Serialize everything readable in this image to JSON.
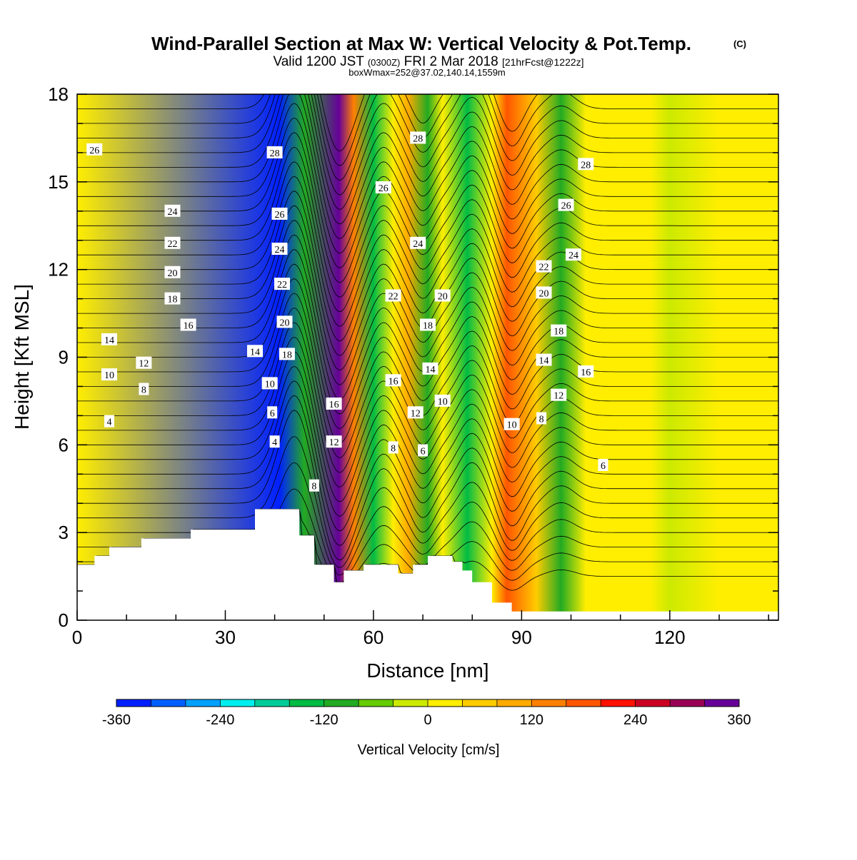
{
  "title": {
    "main": "Wind-Parallel Section at Max W: Vertical Velocity & Pot.Temp.",
    "copyright": "(C)",
    "valid_prefix": "Valid 1200 JST",
    "valid_zulu": "(0300Z)",
    "valid_date": "FRI 2 Mar 2018",
    "forecast": "[21hrFcst@1222z]",
    "boxinfo": "boxWmax=252@37.02,140.14,1559m"
  },
  "chart_data": {
    "type": "heatmap",
    "xlabel": "Distance [nm]",
    "ylabel": "Height [Kft MSL]",
    "xlim": [
      0,
      142
    ],
    "ylim": [
      0,
      18
    ],
    "x_ticks": [
      0,
      30,
      60,
      90,
      120
    ],
    "x_tick_labels": [
      "0",
      "30",
      "60",
      "90",
      "120"
    ],
    "y_ticks": [
      0,
      3,
      6,
      9,
      12,
      15,
      18
    ],
    "y_tick_labels": [
      "0",
      "3",
      "6",
      "9",
      "12",
      "15",
      "18"
    ],
    "colorbar": {
      "label": "Vertical Velocity [cm/s]",
      "min": -360,
      "max": 360,
      "step": 40,
      "tick_values": [
        -360,
        -240,
        -120,
        0,
        120,
        240,
        360
      ],
      "tick_labels": [
        "-360",
        "-240",
        "-120",
        "0",
        "120",
        "240",
        "360"
      ],
      "colors": [
        "#0020ff",
        "#0060ff",
        "#00a0ff",
        "#00eeee",
        "#00cc99",
        "#00bb44",
        "#22aa22",
        "#66cc00",
        "#ccea00",
        "#ffee00",
        "#ffcc00",
        "#ffaa00",
        "#ff8000",
        "#ff5500",
        "#ff1100",
        "#cc0022",
        "#990055",
        "#660099"
      ]
    },
    "velocity_features": [
      {
        "x": 0,
        "w": 3
      },
      {
        "x": 41,
        "w": -330
      },
      {
        "x": 46,
        "w": -120
      },
      {
        "x": 53,
        "w": 350
      },
      {
        "x": 56,
        "w": 150
      },
      {
        "x": 60,
        "w": -140
      },
      {
        "x": 64,
        "w": 20
      },
      {
        "x": 67,
        "w": 90
      },
      {
        "x": 71,
        "w": -100
      },
      {
        "x": 74,
        "w": 0
      },
      {
        "x": 79,
        "w": -160
      },
      {
        "x": 84,
        "w": 10
      },
      {
        "x": 87,
        "w": 180
      },
      {
        "x": 93,
        "w": 40
      },
      {
        "x": 98,
        "w": -110
      },
      {
        "x": 103,
        "w": 20
      },
      {
        "x": 110,
        "w": 30
      },
      {
        "x": 116,
        "w": 5
      },
      {
        "x": 120,
        "w": -30
      },
      {
        "x": 130,
        "w": 5
      },
      {
        "x": 142,
        "w": 25
      }
    ],
    "terrain_kft": [
      [
        0,
        1.9
      ],
      [
        3.5,
        2.2
      ],
      [
        6.5,
        2.5
      ],
      [
        13,
        2.8
      ],
      [
        23,
        3.1
      ],
      [
        36,
        3.8
      ],
      [
        45,
        2.9
      ],
      [
        48,
        1.9
      ],
      [
        52,
        1.3
      ],
      [
        54,
        1.7
      ],
      [
        58,
        1.9
      ],
      [
        60,
        1.9
      ],
      [
        65,
        1.6
      ],
      [
        68,
        1.9
      ],
      [
        71,
        2.2
      ],
      [
        76,
        2.0
      ],
      [
        78,
        1.7
      ],
      [
        80,
        1.3
      ],
      [
        84,
        0.6
      ],
      [
        88,
        0.3
      ],
      [
        142,
        0.3
      ]
    ],
    "theta_contours": {
      "unit_note": "potential temperature contour labels (deg C), spacing 1",
      "labels": [
        {
          "text": "26",
          "x": 3.5,
          "y": 16.1
        },
        {
          "text": "24",
          "x": 19.3,
          "y": 14.0
        },
        {
          "text": "22",
          "x": 19.3,
          "y": 12.9
        },
        {
          "text": "20",
          "x": 19.3,
          "y": 11.9
        },
        {
          "text": "18",
          "x": 19.3,
          "y": 11.0
        },
        {
          "text": "16",
          "x": 22.5,
          "y": 10.1
        },
        {
          "text": "14",
          "x": 6.5,
          "y": 9.6
        },
        {
          "text": "12",
          "x": 13.5,
          "y": 8.8
        },
        {
          "text": "10",
          "x": 6.5,
          "y": 8.4
        },
        {
          "text": "8",
          "x": 13.5,
          "y": 7.9
        },
        {
          "text": "4",
          "x": 6.5,
          "y": 6.8
        },
        {
          "text": "28",
          "x": 40,
          "y": 16.0
        },
        {
          "text": "26",
          "x": 41,
          "y": 13.9
        },
        {
          "text": "24",
          "x": 41,
          "y": 12.7
        },
        {
          "text": "22",
          "x": 41.5,
          "y": 11.5
        },
        {
          "text": "20",
          "x": 42,
          "y": 10.2
        },
        {
          "text": "18",
          "x": 42.5,
          "y": 9.1
        },
        {
          "text": "14",
          "x": 36,
          "y": 9.2
        },
        {
          "text": "10",
          "x": 39,
          "y": 8.1
        },
        {
          "text": "6",
          "x": 39.5,
          "y": 7.1
        },
        {
          "text": "4",
          "x": 40,
          "y": 6.1
        },
        {
          "text": "8",
          "x": 48,
          "y": 4.6
        },
        {
          "text": "16",
          "x": 52,
          "y": 7.4
        },
        {
          "text": "12",
          "x": 52,
          "y": 6.1
        },
        {
          "text": "28",
          "x": 69,
          "y": 16.5
        },
        {
          "text": "26",
          "x": 62,
          "y": 14.8
        },
        {
          "text": "24",
          "x": 69,
          "y": 12.9
        },
        {
          "text": "22",
          "x": 64,
          "y": 11.1
        },
        {
          "text": "20",
          "x": 74,
          "y": 11.1
        },
        {
          "text": "18",
          "x": 71,
          "y": 10.1
        },
        {
          "text": "16",
          "x": 64,
          "y": 8.2
        },
        {
          "text": "14",
          "x": 71.5,
          "y": 8.6
        },
        {
          "text": "12",
          "x": 68.5,
          "y": 7.1
        },
        {
          "text": "10",
          "x": 74,
          "y": 7.5
        },
        {
          "text": "8",
          "x": 64,
          "y": 5.9
        },
        {
          "text": "6",
          "x": 70,
          "y": 5.8
        },
        {
          "text": "28",
          "x": 103,
          "y": 15.6
        },
        {
          "text": "26",
          "x": 99,
          "y": 14.2
        },
        {
          "text": "24",
          "x": 100.5,
          "y": 12.5
        },
        {
          "text": "22",
          "x": 94.5,
          "y": 12.1
        },
        {
          "text": "20",
          "x": 94.5,
          "y": 11.2
        },
        {
          "text": "18",
          "x": 97.5,
          "y": 9.9
        },
        {
          "text": "16",
          "x": 103,
          "y": 8.5
        },
        {
          "text": "14",
          "x": 94.5,
          "y": 8.9
        },
        {
          "text": "12",
          "x": 97.5,
          "y": 7.7
        },
        {
          "text": "10",
          "x": 88,
          "y": 6.7
        },
        {
          "text": "8",
          "x": 94,
          "y": 6.9
        },
        {
          "text": "6",
          "x": 106.5,
          "y": 5.3
        }
      ]
    }
  }
}
